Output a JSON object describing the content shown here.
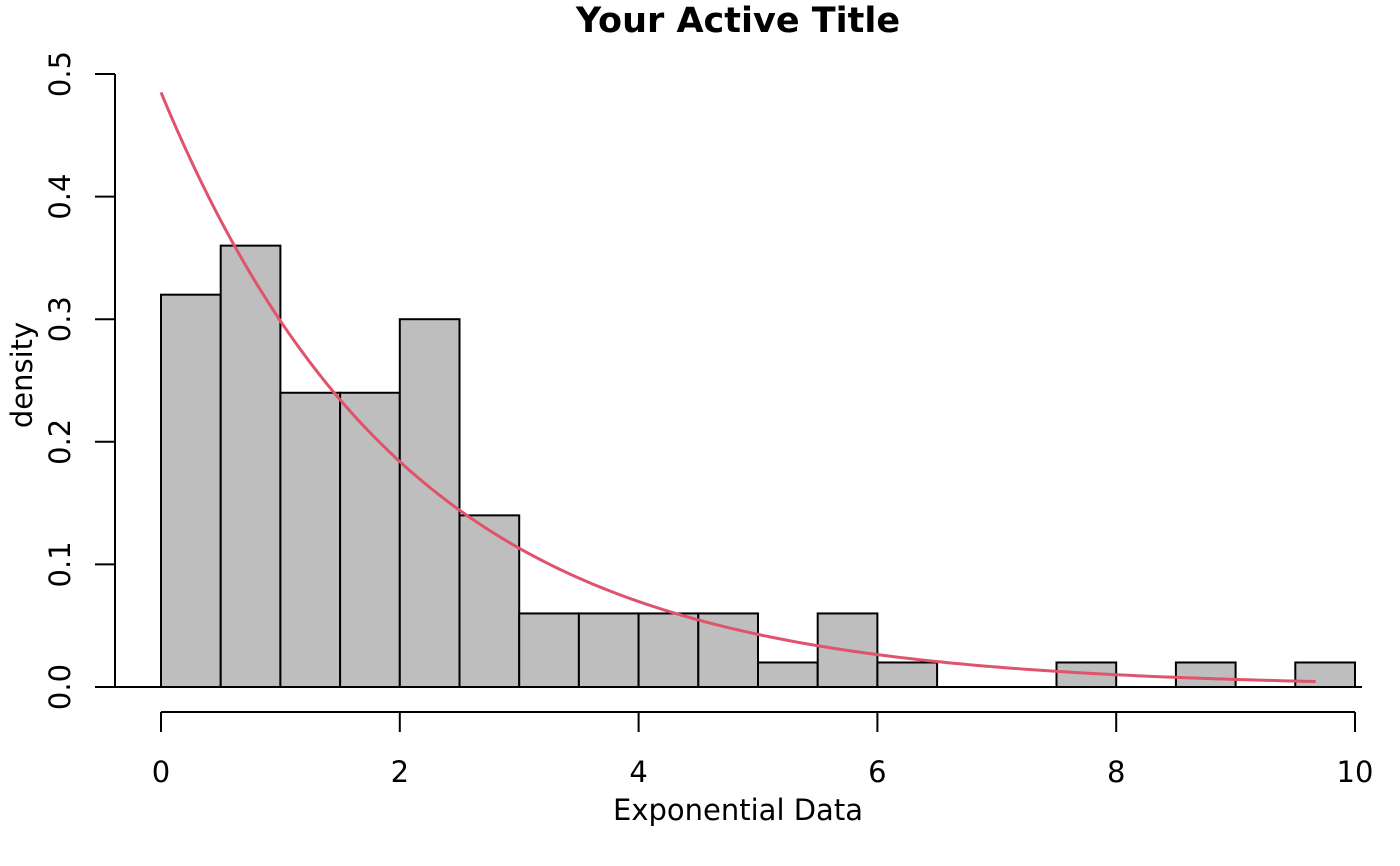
{
  "chart_data": {
    "type": "bar",
    "title": "Your Active Title",
    "xlabel": "Exponential Data",
    "ylabel": "density",
    "xlim": [
      0,
      10
    ],
    "ylim": [
      0,
      0.5
    ],
    "x_ticks": [
      0,
      2,
      4,
      6,
      8,
      10
    ],
    "x_tick_labels": [
      "0",
      "2",
      "4",
      "6",
      "8",
      "10"
    ],
    "y_ticks": [
      0,
      0.1,
      0.2,
      0.3,
      0.4,
      0.5
    ],
    "y_tick_labels": [
      "0.0",
      "0.1",
      "0.2",
      "0.3",
      "0.4",
      "0.5"
    ],
    "bins": [
      {
        "from": 0.0,
        "to": 0.5,
        "density": 0.32
      },
      {
        "from": 0.5,
        "to": 1.0,
        "density": 0.36
      },
      {
        "from": 1.0,
        "to": 1.5,
        "density": 0.24
      },
      {
        "from": 1.5,
        "to": 2.0,
        "density": 0.24
      },
      {
        "from": 2.0,
        "to": 2.5,
        "density": 0.3
      },
      {
        "from": 2.5,
        "to": 3.0,
        "density": 0.14
      },
      {
        "from": 3.0,
        "to": 3.5,
        "density": 0.06
      },
      {
        "from": 3.5,
        "to": 4.0,
        "density": 0.06
      },
      {
        "from": 4.0,
        "to": 4.5,
        "density": 0.06
      },
      {
        "from": 4.5,
        "to": 5.0,
        "density": 0.06
      },
      {
        "from": 5.0,
        "to": 5.5,
        "density": 0.02
      },
      {
        "from": 5.5,
        "to": 6.0,
        "density": 0.06
      },
      {
        "from": 6.0,
        "to": 6.5,
        "density": 0.02
      },
      {
        "from": 6.5,
        "to": 7.0,
        "density": 0.0
      },
      {
        "from": 7.0,
        "to": 7.5,
        "density": 0.0
      },
      {
        "from": 7.5,
        "to": 8.0,
        "density": 0.02
      },
      {
        "from": 8.0,
        "to": 8.5,
        "density": 0.0
      },
      {
        "from": 8.5,
        "to": 9.0,
        "density": 0.02
      },
      {
        "from": 9.0,
        "to": 9.5,
        "density": 0.0
      },
      {
        "from": 9.5,
        "to": 10.0,
        "density": 0.02
      }
    ],
    "density_curve": {
      "function": "exponential",
      "rate": 0.485,
      "x_range": [
        0,
        9.67
      ]
    },
    "colors": {
      "bar_fill": "#bebebe",
      "bar_stroke": "#000000",
      "curve": "#df536b"
    },
    "grid": false,
    "legend": "none"
  }
}
